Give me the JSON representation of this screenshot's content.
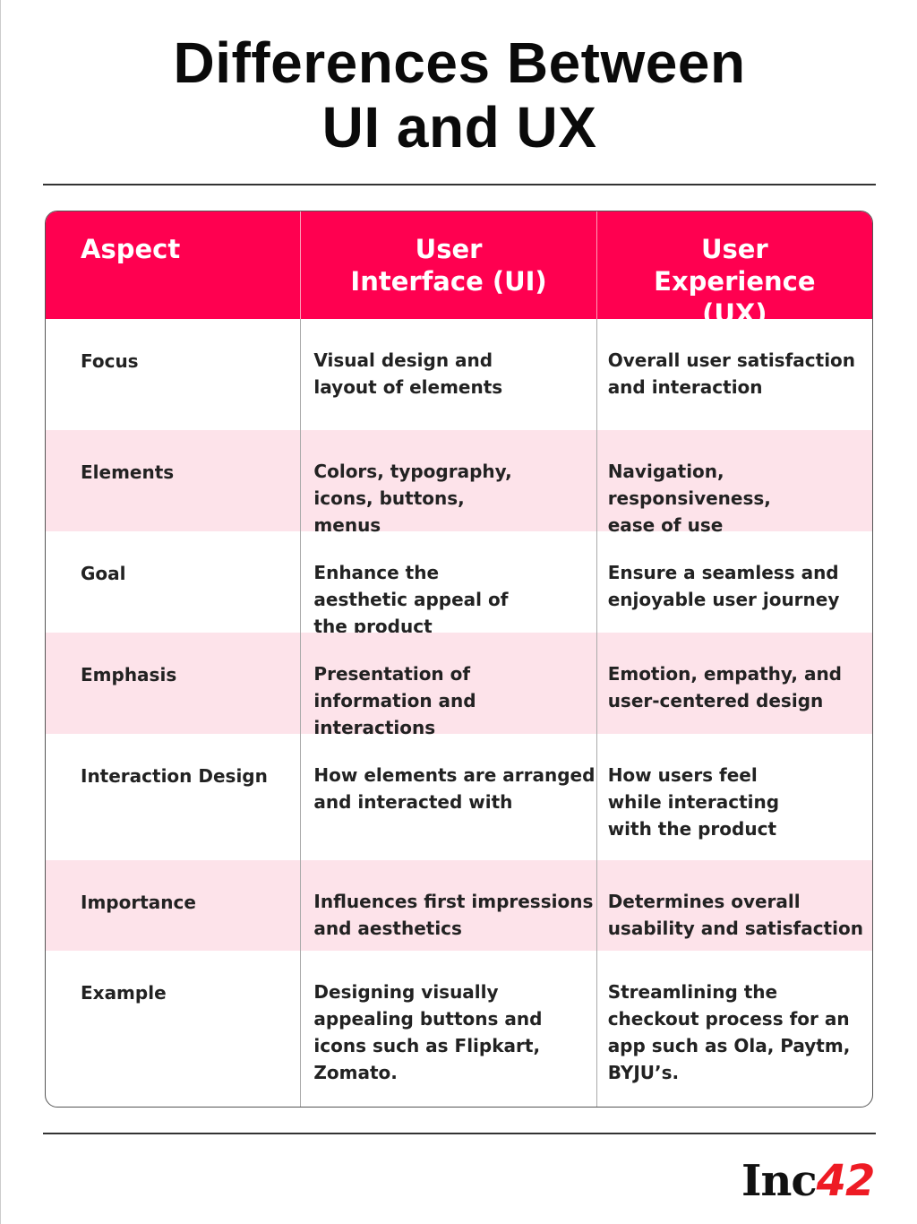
{
  "title_line1": "Differences Between",
  "title_line2": "UI and UX",
  "table": {
    "headers": [
      "Aspect",
      "User Interface (UI)",
      "User Experience (UX)"
    ],
    "rows": [
      {
        "aspect": "Focus",
        "ui": "Visual design and layout of elements",
        "ux": "Overall user satisfaction and interaction"
      },
      {
        "aspect": "Elements",
        "ui": "Colors, typography, icons, buttons, menus",
        "ux": "Navigation, responsiveness, ease of use"
      },
      {
        "aspect": "Goal",
        "ui": "Enhance the aesthetic appeal of the product",
        "ux": "Ensure a seamless and enjoyable user journey"
      },
      {
        "aspect": "Emphasis",
        "ui": "Presentation of information and interactions",
        "ux": "Emotion, empathy, and user-centered design"
      },
      {
        "aspect": "Interaction Design",
        "ui": "How elements are arranged and interacted with",
        "ux": "How users feel while interacting with the product"
      },
      {
        "aspect": "Importance",
        "ui": "Influences first impressions and aesthetics",
        "ux": "Determines overall usability and satisfaction"
      },
      {
        "aspect": "Example",
        "ui": "Designing visually appealing buttons and icons such as Flipkart, Zomato.",
        "ux": "Streamlining the checkout process for an app such as Ola, Paytm, BYJU’s."
      }
    ]
  },
  "logo": {
    "text": "Inc42",
    "brand_color": "#ee1b24"
  },
  "colors": {
    "header": "#ff0050",
    "stripe": "#fde3ea"
  }
}
